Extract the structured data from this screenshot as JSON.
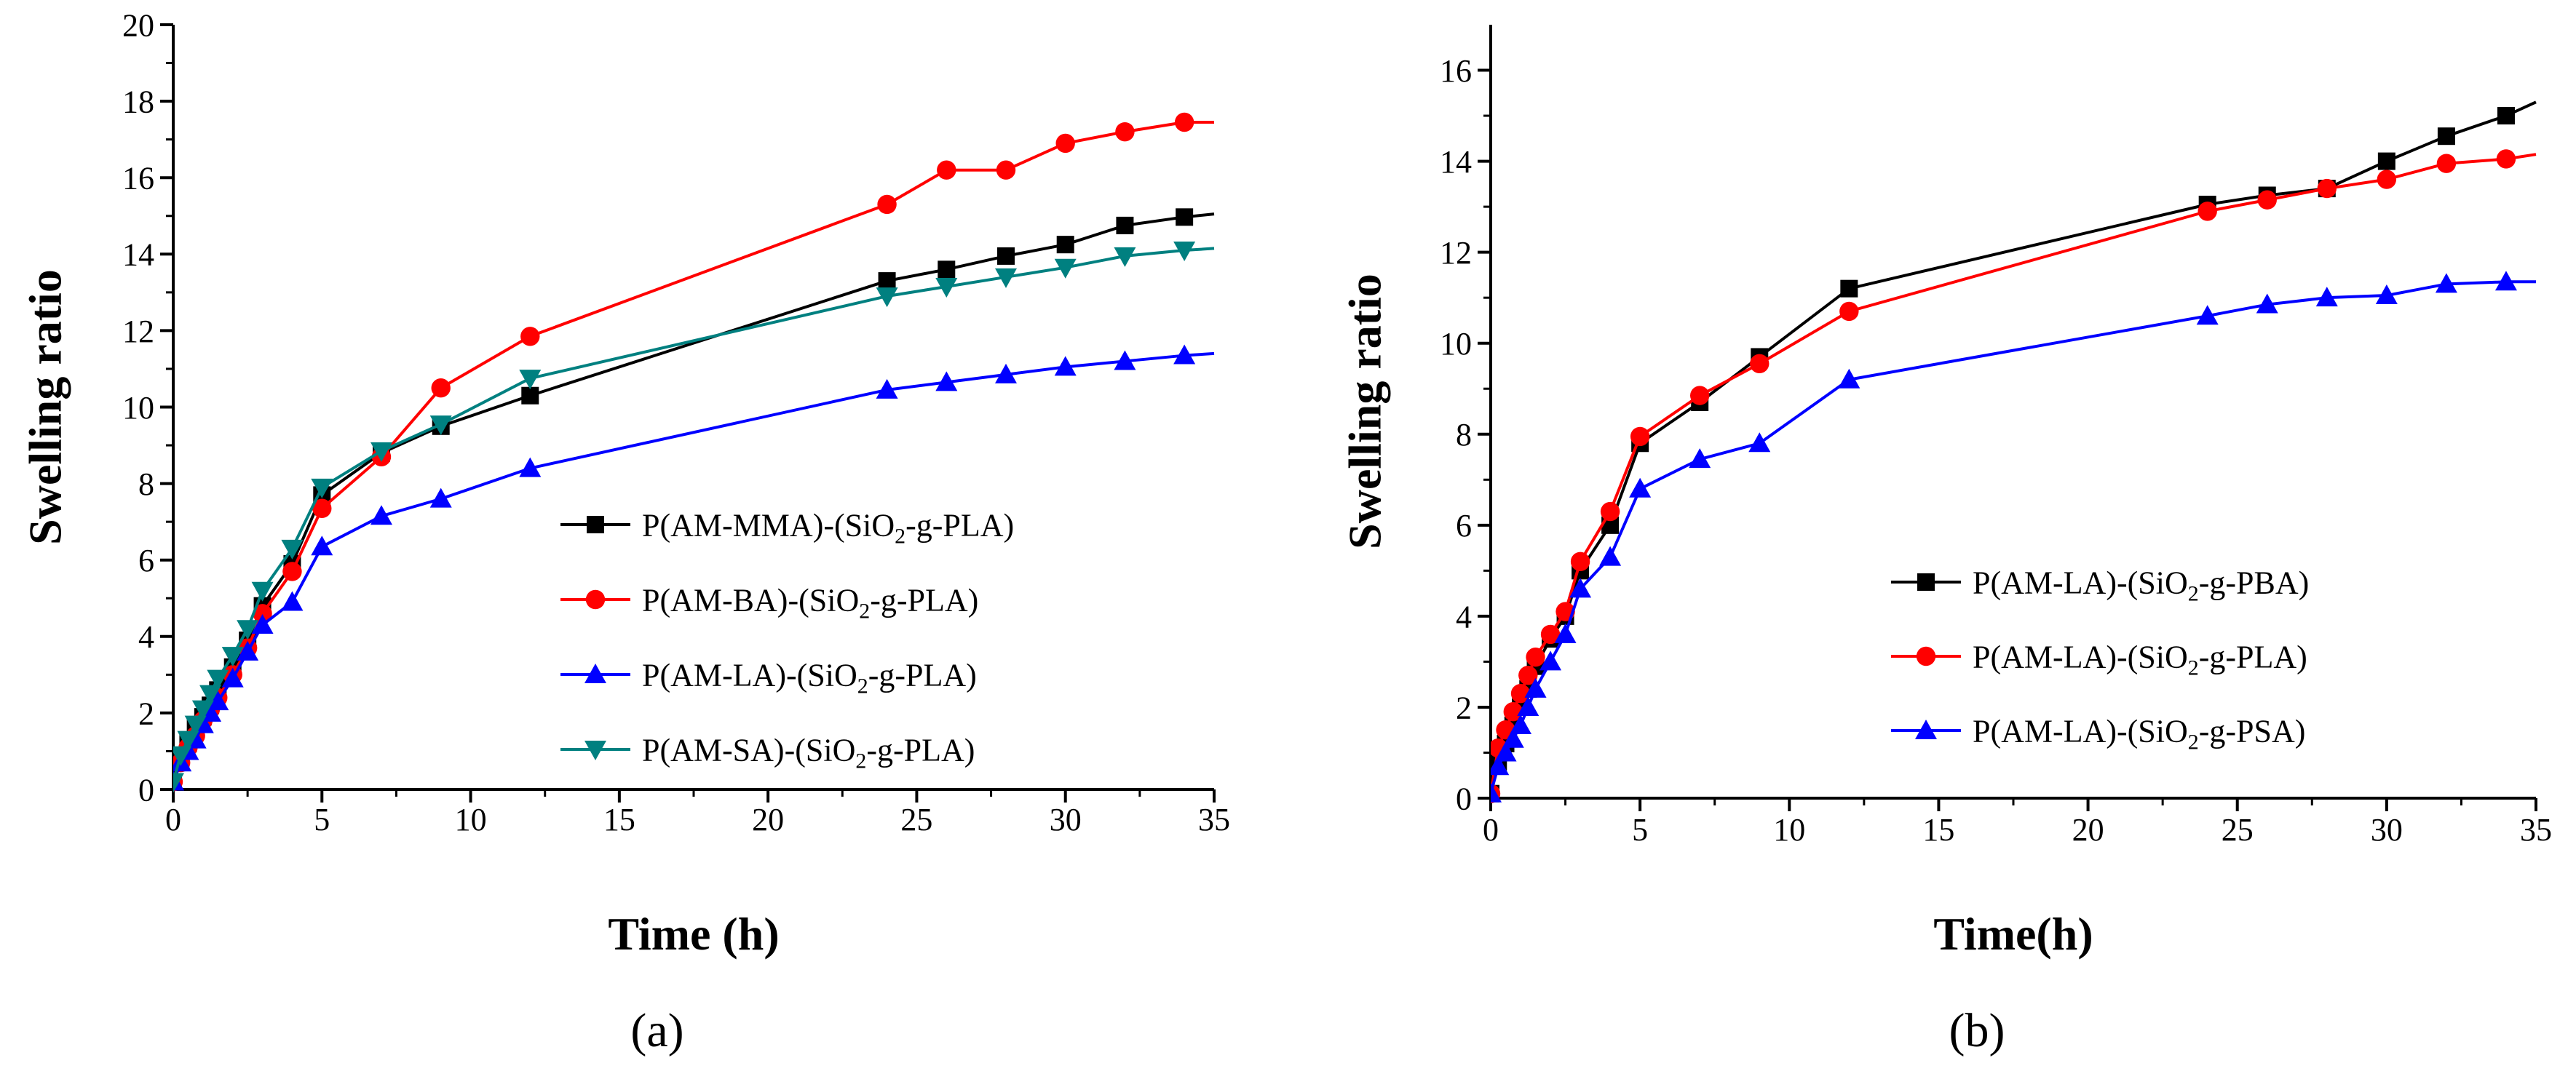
{
  "chart_data": [
    {
      "type": "line",
      "panel_label": "(a)",
      "xlabel": "Time (h)",
      "ylabel": "Swelling ratio",
      "xlim": [
        0,
        35
      ],
      "ylim": [
        0,
        20
      ],
      "xticks": [
        0,
        5,
        10,
        15,
        20,
        25,
        30,
        35
      ],
      "yticks": [
        0,
        2,
        4,
        6,
        8,
        10,
        12,
        14,
        16,
        18,
        20
      ],
      "legend_position": "lower-right",
      "series": [
        {
          "name": "P(AM-MMA)-(SiO2-g-PLA)",
          "legend": {
            "a": "P(AM-MMA)-(SiO",
            "sub": "2",
            "b": "-g-PLA)"
          },
          "color": "#000000",
          "marker": "square",
          "x": [
            0,
            0.25,
            0.5,
            0.75,
            1,
            1.25,
            1.5,
            2,
            2.5,
            3,
            4,
            5,
            7,
            9,
            12,
            24,
            26,
            28,
            30,
            32,
            34,
            35
          ],
          "y": [
            0.2,
            0.8,
            1.2,
            1.6,
            1.9,
            2.2,
            2.6,
            3.2,
            3.9,
            4.8,
            5.9,
            7.7,
            8.8,
            9.5,
            10.3,
            13.3,
            13.6,
            13.95,
            14.25,
            14.75,
            14.97,
            15.05
          ]
        },
        {
          "name": "P(AM-BA)-(SiO2-g-PLA)",
          "legend": {
            "a": "P(AM-BA)-(SiO",
            "sub": "2",
            "b": "-g-PLA)"
          },
          "color": "#ff0000",
          "marker": "circle",
          "x": [
            0,
            0.25,
            0.5,
            0.75,
            1,
            1.25,
            1.5,
            2,
            2.5,
            3,
            4,
            5,
            7,
            9,
            12,
            24,
            26,
            28,
            30,
            32,
            34,
            35
          ],
          "y": [
            0.2,
            0.7,
            1.1,
            1.4,
            1.8,
            2.1,
            2.4,
            3.0,
            3.7,
            4.6,
            5.7,
            7.35,
            8.7,
            10.5,
            11.85,
            15.3,
            16.2,
            16.2,
            16.9,
            17.2,
            17.45,
            17.45
          ]
        },
        {
          "name": "P(AM-LA)-(SiO2-g-PLA)",
          "legend": {
            "a": "P(AM-LA)-(SiO",
            "sub": "2",
            "b": "-g-PLA)"
          },
          "color": "#0000ff",
          "marker": "triangle-up",
          "x": [
            0,
            0.25,
            0.5,
            0.75,
            1,
            1.25,
            1.5,
            2,
            2.5,
            3,
            4,
            5,
            7,
            9,
            12,
            24,
            26,
            28,
            30,
            32,
            34,
            35
          ],
          "y": [
            0.2,
            0.7,
            1.0,
            1.3,
            1.7,
            2.0,
            2.3,
            2.9,
            3.6,
            4.3,
            4.9,
            6.35,
            7.15,
            7.6,
            8.4,
            10.45,
            10.65,
            10.85,
            11.05,
            11.2,
            11.35,
            11.4
          ]
        },
        {
          "name": "P(AM-SA)-(SiO2-g-PLA)",
          "legend": {
            "a": "P(AM-SA)-(SiO",
            "sub": "2",
            "b": "-g-PLA)"
          },
          "color": "#008080",
          "marker": "triangle-down",
          "x": [
            0,
            0.25,
            0.5,
            0.75,
            1,
            1.25,
            1.5,
            2,
            2.5,
            3,
            4,
            5,
            7,
            9,
            12,
            24,
            26,
            28,
            30,
            32,
            34,
            35
          ],
          "y": [
            0.2,
            0.9,
            1.3,
            1.7,
            2.1,
            2.5,
            2.9,
            3.5,
            4.2,
            5.2,
            6.3,
            7.9,
            8.85,
            9.55,
            10.75,
            12.9,
            13.15,
            13.4,
            13.65,
            13.95,
            14.1,
            14.15
          ]
        }
      ]
    },
    {
      "type": "line",
      "panel_label": "(b)",
      "xlabel": "Time(h)",
      "ylabel": "Swelling ratio",
      "xlim": [
        0,
        35
      ],
      "ylim": [
        0,
        17
      ],
      "xticks": [
        0,
        5,
        10,
        15,
        20,
        25,
        30,
        35
      ],
      "yticks": [
        0,
        2,
        4,
        6,
        8,
        10,
        12,
        14,
        16
      ],
      "legend_position": "lower-right",
      "series": [
        {
          "name": "P(AM-LA)-(SiO2-g-PBA)",
          "legend": {
            "a": "P(AM-LA)-(SiO",
            "sub": "2",
            "b": "-g-PBA)"
          },
          "color": "#000000",
          "marker": "square",
          "x": [
            0,
            0.25,
            0.5,
            0.75,
            1,
            1.25,
            1.5,
            2,
            2.5,
            3,
            4,
            5,
            7,
            9,
            12,
            24,
            26,
            28,
            30,
            32,
            34,
            35
          ],
          "y": [
            0.1,
            0.8,
            1.2,
            1.6,
            2.0,
            2.4,
            2.9,
            3.5,
            4.0,
            5.0,
            6.0,
            7.8,
            8.7,
            9.7,
            11.2,
            13.05,
            13.25,
            13.4,
            14.0,
            14.55,
            15.0,
            15.3
          ]
        },
        {
          "name": "P(AM-LA)-(SiO2-g-PLA)",
          "legend": {
            "a": "P(AM-LA)-(SiO",
            "sub": "2",
            "b": "-g-PLA)"
          },
          "color": "#ff0000",
          "marker": "circle",
          "x": [
            0,
            0.25,
            0.5,
            0.75,
            1,
            1.25,
            1.5,
            2,
            2.5,
            3,
            4,
            5,
            7,
            9,
            12,
            24,
            26,
            28,
            30,
            32,
            34,
            35
          ],
          "y": [
            0.1,
            1.1,
            1.5,
            1.9,
            2.3,
            2.7,
            3.1,
            3.6,
            4.1,
            5.2,
            6.3,
            7.95,
            8.85,
            9.55,
            10.7,
            12.9,
            13.15,
            13.4,
            13.6,
            13.95,
            14.05,
            14.15
          ]
        },
        {
          "name": "P(AM-LA)-(SiO2-g-PSA)",
          "legend": {
            "a": "P(AM-LA)-(SiO",
            "sub": "2",
            "b": "-g-PSA)"
          },
          "color": "#0000ff",
          "marker": "triangle-up",
          "x": [
            0,
            0.25,
            0.5,
            0.75,
            1,
            1.25,
            1.5,
            2,
            2.5,
            3,
            4,
            5,
            7,
            9,
            12,
            24,
            26,
            28,
            30,
            32,
            34,
            35
          ],
          "y": [
            0.1,
            0.7,
            1.0,
            1.3,
            1.6,
            2.0,
            2.4,
            3.0,
            3.6,
            4.6,
            5.3,
            6.8,
            7.45,
            7.8,
            9.2,
            10.6,
            10.85,
            11.0,
            11.05,
            11.3,
            11.35,
            11.35
          ]
        }
      ]
    }
  ]
}
